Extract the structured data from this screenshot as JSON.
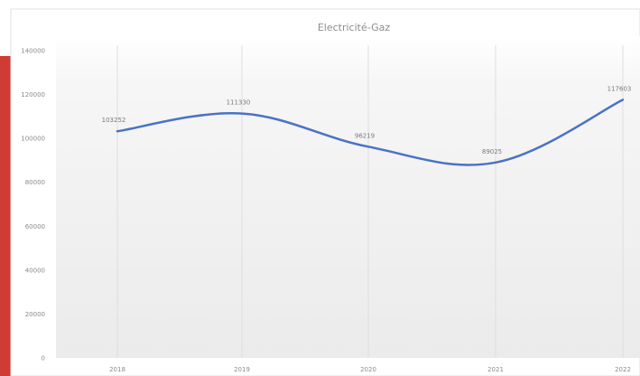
{
  "chart_data": {
    "type": "line",
    "title": "Electricité-Gaz",
    "xlabel": "",
    "ylabel": "",
    "categories": [
      "2018",
      "2019",
      "2020",
      "2021",
      "2022"
    ],
    "series": [
      {
        "values": [
          103252,
          111330,
          96219,
          89025,
          117603
        ],
        "color": "#4a72c4"
      }
    ],
    "data_labels": [
      "103252",
      "111330",
      "96219",
      "89025",
      "117603"
    ],
    "y_ticks": [
      "0",
      "20000",
      "40000",
      "60000",
      "80000",
      "100000",
      "120000",
      "140000"
    ],
    "ylim": [
      0,
      140000
    ],
    "grid": "vertical",
    "legend": "none",
    "colors": {
      "accent_strip": "#d13b35",
      "line": "#4a72c4"
    }
  }
}
